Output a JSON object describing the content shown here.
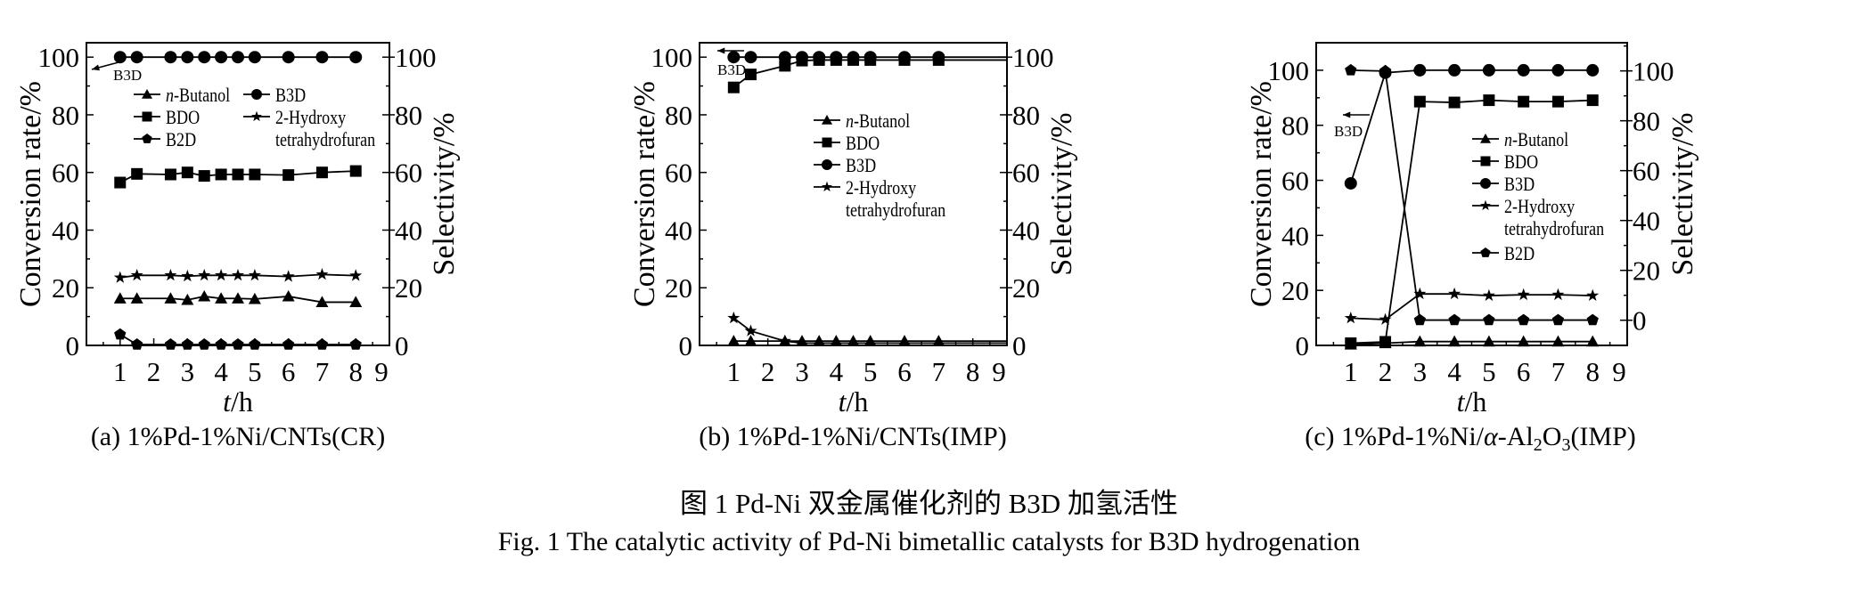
{
  "figure": {
    "caption_cn": "图 1   Pd-Ni 双金属催化剂的 B3D 加氢活性",
    "caption_en": "Fig. 1   The catalytic activity of Pd-Ni bimetallic catalysts for B3D hydrogenation"
  },
  "chart_data": [
    {
      "type": "line",
      "subtitle": "(a) 1%Pd-1%Ni/CNTs(CR)",
      "xlabel_italic": "t",
      "xlabel_unit": "/h",
      "ylabel": "Conversion rate/%",
      "y2label": "Selectivity/%",
      "xlim": [
        0,
        9
      ],
      "ylim": [
        0,
        105
      ],
      "y2lim": [
        0,
        105
      ],
      "xticks": [
        "1",
        "2",
        "3",
        "4",
        "5",
        "6",
        "7",
        "8",
        "9"
      ],
      "yticks": [
        "0",
        "20",
        "40",
        "60",
        "80",
        "100"
      ],
      "y2ticks": [
        "0",
        "20",
        "40",
        "60",
        "80",
        "100"
      ],
      "annotation": "B3D",
      "legend_placement": "top-center, two columns",
      "series": [
        {
          "name": "n-Butanol",
          "marker": "triangle",
          "x": [
            1,
            1.5,
            2.5,
            3,
            3.5,
            4,
            4.5,
            5,
            6,
            7,
            8
          ],
          "values": [
            16.3,
            16.3,
            16.3,
            15.8,
            17,
            16.3,
            16.3,
            16.1,
            17,
            15,
            15
          ]
        },
        {
          "name": "BDO",
          "marker": "square",
          "x": [
            1,
            1.5,
            2.5,
            3,
            3.5,
            4,
            4.5,
            5,
            6,
            7,
            8
          ],
          "values": [
            56.5,
            59.5,
            59.3,
            60,
            58.8,
            59.3,
            59.3,
            59.3,
            59.1,
            60,
            60.5
          ]
        },
        {
          "name": "B2D",
          "marker": "pentagon",
          "x": [
            1,
            1.5,
            2.5,
            3,
            3.5,
            4,
            4.5,
            5,
            6,
            7,
            8
          ],
          "values": [
            3.8,
            0.3,
            0.3,
            0.3,
            0.3,
            0.3,
            0.3,
            0.3,
            0.3,
            0.3,
            0.3
          ]
        },
        {
          "name": "B3D",
          "marker": "circle",
          "x": [
            1,
            1.5,
            2.5,
            3,
            3.5,
            4,
            4.5,
            5,
            6,
            7,
            8
          ],
          "values": [
            100,
            100,
            100,
            100,
            100,
            100,
            100,
            100,
            100,
            100,
            100
          ]
        },
        {
          "name": "2-Hydroxy tetrahydrofuran",
          "name_line1": "2-Hydroxy",
          "name_line2": "tetrahydrofuran",
          "marker": "star",
          "x": [
            1,
            1.5,
            2.5,
            3,
            3.5,
            4,
            4.5,
            5,
            6,
            7,
            8
          ],
          "values": [
            23.5,
            24.3,
            24.3,
            24,
            24.3,
            24.3,
            24.3,
            24.3,
            23.9,
            24.6,
            24.2
          ]
        }
      ]
    },
    {
      "type": "line",
      "subtitle": "(b) 1%Pd-1%Ni/CNTs(IMP)",
      "xlabel_italic": "t",
      "xlabel_unit": "/h",
      "ylabel": "Conversion rate/%",
      "y2label": "Selectivity/%",
      "xlim": [
        0,
        9
      ],
      "ylim": [
        0,
        105
      ],
      "y2lim": [
        0,
        105
      ],
      "xticks": [
        "1",
        "2",
        "3",
        "4",
        "5",
        "6",
        "7",
        "8",
        "9"
      ],
      "yticks": [
        "0",
        "20",
        "40",
        "60",
        "80",
        "100"
      ],
      "y2ticks": [
        "0",
        "20",
        "40",
        "60",
        "80",
        "100"
      ],
      "annotation": "B3D",
      "legend_placement": "center",
      "series": [
        {
          "name": "n-Butanol",
          "marker": "triangle",
          "x": [
            1,
            1.5,
            2.5,
            3,
            3.5,
            4,
            4.5,
            5,
            6,
            7
          ],
          "values": [
            1.5,
            1.5,
            1.5,
            1.5,
            1.5,
            1.5,
            1.5,
            1.5,
            1.5,
            1.5
          ]
        },
        {
          "name": "BDO",
          "marker": "square",
          "x": [
            1,
            1.5,
            2.5,
            3,
            3.5,
            4,
            4.5,
            5,
            6,
            7
          ],
          "values": [
            89.5,
            94,
            97,
            98.8,
            99,
            99,
            99,
            99,
            99,
            99
          ]
        },
        {
          "name": "B3D",
          "marker": "circle",
          "x": [
            1,
            1.5,
            2.5,
            3,
            3.5,
            4,
            4.5,
            5,
            6,
            7
          ],
          "values": [
            100,
            100,
            100,
            100,
            100,
            100,
            100,
            100,
            100,
            100
          ]
        },
        {
          "name": "2-Hydroxy tetrahydrofuran",
          "name_line1": "2-Hydroxy",
          "name_line2": "tetrahydrofuran",
          "marker": "star",
          "x": [
            1,
            1.5,
            2.5
          ],
          "values": [
            9.5,
            5,
            1.5
          ]
        }
      ]
    },
    {
      "type": "line",
      "subtitle": "(c) 1%Pd-1%Ni/α-Al2O3(IMP)",
      "subtitle_parts": [
        "(c) 1%Pd-1%Ni/",
        "α",
        "-Al",
        "2",
        "O",
        "3",
        "(IMP)"
      ],
      "xlabel_italic": "t",
      "xlabel_unit": "/h",
      "ylabel": "Conversion rate/%",
      "y2label": "Selectivity/%",
      "xlim": [
        0,
        9
      ],
      "ylim": [
        0,
        110
      ],
      "y2lim": [
        -10.1,
        111.3
      ],
      "xticks": [
        "1",
        "2",
        "3",
        "4",
        "5",
        "6",
        "7",
        "8",
        "9"
      ],
      "yticks": [
        "0",
        "20",
        "40",
        "60",
        "80",
        "100"
      ],
      "y2ticks": [
        "0",
        "20",
        "40",
        "60",
        "80",
        "100"
      ],
      "annotation": "B3D",
      "legend_placement": "center-right",
      "series": [
        {
          "name": "n-Butanol",
          "marker": "triangle",
          "x": [
            1,
            2,
            3,
            4,
            5,
            6,
            7,
            8
          ],
          "values": [
            0.3,
            0.8,
            1.4,
            1.4,
            1.4,
            1.4,
            1.4,
            1.4
          ]
        },
        {
          "name": "BDO",
          "marker": "square",
          "x": [
            1,
            2,
            3,
            4,
            5,
            6,
            7,
            8
          ],
          "values": [
            0.8,
            1.3,
            88.6,
            88.3,
            89.1,
            88.6,
            88.6,
            89.1
          ]
        },
        {
          "name": "B3D",
          "marker": "circle",
          "x": [
            1,
            2,
            3,
            4,
            5,
            6,
            7,
            8
          ],
          "values": [
            58.9,
            99.1,
            100,
            100,
            100,
            100,
            100,
            100
          ]
        },
        {
          "name": "2-Hydroxy tetrahydrofuran",
          "name_line1": "2-Hydroxy",
          "name_line2": "tetrahydrofuran",
          "marker": "star",
          "x": [
            1,
            2,
            3,
            4,
            5,
            6,
            7,
            8
          ],
          "values": [
            9.9,
            9.4,
            18.7,
            18.7,
            18.1,
            18.4,
            18.4,
            18.1
          ]
        },
        {
          "name": "B2D",
          "marker": "pentagon",
          "x": [
            1,
            2,
            3,
            4,
            5,
            6,
            7,
            8
          ],
          "values": [
            100,
            99.7,
            9.2,
            9.2,
            9.2,
            9.2,
            9.2,
            9.2
          ]
        }
      ]
    }
  ]
}
